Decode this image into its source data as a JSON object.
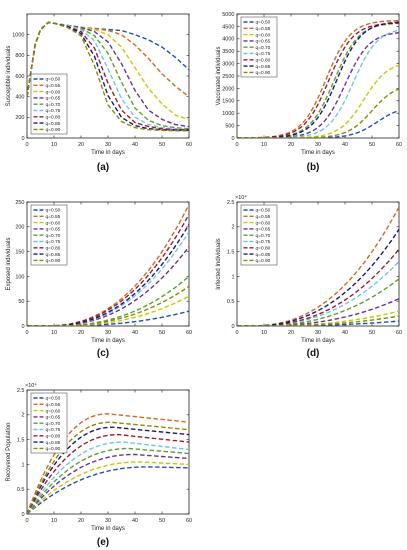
{
  "series_names": [
    "q=0.50",
    "q=0.55",
    "q=0.60",
    "q=0.65",
    "q=0.70",
    "q=0.75",
    "q=0.80",
    "q=0.85",
    "q=0.90"
  ],
  "series_colors": [
    "#1f4fbf",
    "#d2691e",
    "#c9c900",
    "#6a2fa0",
    "#5aa02c",
    "#6fc4e8",
    "#9e1b32",
    "#1a1a6e",
    "#8a8a00"
  ],
  "xlabel": "Time in days",
  "chart_data": [
    {
      "type": "line",
      "label": "(a)",
      "title": "",
      "xlabel": "Time in days",
      "ylabel": "Susceptible individuals",
      "xlim": [
        0,
        60
      ],
      "ylim": [
        0,
        1200
      ],
      "xticks": [
        0,
        10,
        20,
        30,
        40,
        50,
        60
      ],
      "yticks": [
        0,
        200,
        400,
        600,
        800,
        1000
      ],
      "exponent": "",
      "legend_position": "bottom-left",
      "kind": "susceptible",
      "x": [
        0,
        3,
        5,
        8,
        10,
        15,
        20,
        25,
        30,
        35,
        40,
        45,
        50,
        55,
        60
      ],
      "series": [
        {
          "name": "q=0.50",
          "values": [
            400,
            900,
            1050,
            1120,
            1110,
            1090,
            1070,
            1060,
            1050,
            1040,
            1000,
            950,
            880,
            780,
            660
          ]
        },
        {
          "name": "q=0.55",
          "values": [
            400,
            900,
            1050,
            1120,
            1110,
            1090,
            1070,
            1060,
            1040,
            1000,
            900,
            770,
            620,
            500,
            400
          ]
        },
        {
          "name": "q=0.60",
          "values": [
            400,
            900,
            1050,
            1120,
            1110,
            1090,
            1070,
            1050,
            1000,
            880,
            680,
            480,
            330,
            220,
            180
          ]
        },
        {
          "name": "q=0.65",
          "values": [
            400,
            900,
            1050,
            1120,
            1110,
            1090,
            1070,
            1030,
            930,
            720,
            460,
            270,
            180,
            130,
            110
          ]
        },
        {
          "name": "q=0.70",
          "values": [
            400,
            900,
            1050,
            1120,
            1110,
            1090,
            1060,
            990,
            820,
            540,
            290,
            170,
            120,
            100,
            90
          ]
        },
        {
          "name": "q=0.75",
          "values": [
            400,
            900,
            1050,
            1120,
            1110,
            1090,
            1050,
            940,
            670,
            380,
            200,
            130,
            100,
            90,
            80
          ]
        },
        {
          "name": "q=0.80",
          "values": [
            400,
            900,
            1050,
            1120,
            1110,
            1080,
            1030,
            870,
            530,
            270,
            150,
            110,
            90,
            80,
            80
          ]
        },
        {
          "name": "q=0.85",
          "values": [
            400,
            900,
            1050,
            1120,
            1110,
            1080,
            1010,
            790,
            410,
            200,
            120,
            90,
            80,
            75,
            75
          ]
        },
        {
          "name": "q=0.90",
          "values": [
            400,
            900,
            1050,
            1120,
            1110,
            1070,
            990,
            700,
            320,
            160,
            100,
            80,
            75,
            70,
            70
          ]
        }
      ]
    },
    {
      "type": "line",
      "label": "(b)",
      "title": "",
      "xlabel": "Time in days",
      "ylabel": "Vaccinated individuals",
      "xlim": [
        0,
        60
      ],
      "ylim": [
        0,
        5000
      ],
      "xticks": [
        0,
        10,
        20,
        30,
        40,
        50,
        60
      ],
      "yticks": [
        0,
        500,
        1000,
        1500,
        2000,
        2500,
        3000,
        3500,
        4000,
        4500,
        5000
      ],
      "exponent": "",
      "legend_position": "top-left",
      "kind": "vaccinated",
      "series": [
        {
          "name": "q=0.50",
          "final": 1300,
          "midpoint": 52
        },
        {
          "name": "q=0.55",
          "final": 4750,
          "midpoint": 33
        },
        {
          "name": "q=0.60",
          "final": 3100,
          "midpoint": 47
        },
        {
          "name": "q=0.65",
          "final": 4300,
          "midpoint": 40
        },
        {
          "name": "q=0.70",
          "final": 4650,
          "midpoint": 36
        },
        {
          "name": "q=0.75",
          "final": 4450,
          "midpoint": 43
        },
        {
          "name": "q=0.80",
          "final": 4650,
          "midpoint": 34
        },
        {
          "name": "q=0.85",
          "final": 4700,
          "midpoint": 37
        },
        {
          "name": "q=0.90",
          "final": 2200,
          "midpoint": 50
        }
      ]
    },
    {
      "type": "line",
      "label": "(c)",
      "title": "",
      "xlabel": "Time in days",
      "ylabel": "Exposed individuals",
      "xlim": [
        0,
        60
      ],
      "ylim": [
        0,
        250
      ],
      "xticks": [
        0,
        10,
        20,
        30,
        40,
        50,
        60
      ],
      "yticks": [
        0,
        50,
        100,
        150,
        200,
        250
      ],
      "exponent": "",
      "legend_position": "top-left",
      "kind": "growth",
      "series": [
        {
          "name": "q=0.50",
          "final": 30,
          "onset": 24
        },
        {
          "name": "q=0.55",
          "final": 245,
          "onset": 20
        },
        {
          "name": "q=0.60",
          "final": 60,
          "onset": 24
        },
        {
          "name": "q=0.65",
          "final": 160,
          "onset": 21
        },
        {
          "name": "q=0.70",
          "final": 100,
          "onset": 23
        },
        {
          "name": "q=0.75",
          "final": 190,
          "onset": 21
        },
        {
          "name": "q=0.80",
          "final": 225,
          "onset": 20
        },
        {
          "name": "q=0.85",
          "final": 205,
          "onset": 21
        },
        {
          "name": "q=0.90",
          "final": 80,
          "onset": 23
        }
      ]
    },
    {
      "type": "line",
      "label": "(d)",
      "title": "",
      "xlabel": "Time in days",
      "ylabel": "Infected Individuals",
      "xlim": [
        0,
        60
      ],
      "ylim": [
        0,
        2.5
      ],
      "xticks": [
        0,
        10,
        20,
        30,
        40,
        50,
        60
      ],
      "yticks": [
        0,
        0.5,
        1,
        1.5,
        2,
        2.5
      ],
      "exponent": "×10⁴",
      "legend_position": "top-left",
      "kind": "growth",
      "series": [
        {
          "name": "q=0.50",
          "final": 0.1,
          "onset": 22
        },
        {
          "name": "q=0.55",
          "final": 2.4,
          "onset": 18
        },
        {
          "name": "q=0.60",
          "final": 0.3,
          "onset": 21
        },
        {
          "name": "q=0.65",
          "final": 0.55,
          "onset": 20
        },
        {
          "name": "q=0.70",
          "final": 0.95,
          "onset": 20
        },
        {
          "name": "q=0.75",
          "final": 1.3,
          "onset": 19
        },
        {
          "name": "q=0.80",
          "final": 1.55,
          "onset": 19
        },
        {
          "name": "q=0.85",
          "final": 1.95,
          "onset": 18
        },
        {
          "name": "q=0.90",
          "final": 0.2,
          "onset": 22
        }
      ]
    },
    {
      "type": "line",
      "label": "(e)",
      "title": "",
      "xlabel": "Time in days",
      "ylabel": "Recovered Population",
      "xlim": [
        0,
        60
      ],
      "ylim": [
        0,
        2.5
      ],
      "xticks": [
        0,
        10,
        20,
        30,
        40,
        50,
        60
      ],
      "yticks": [
        0,
        0.5,
        1,
        1.5,
        2,
        2.5
      ],
      "exponent": "×10⁴",
      "legend_position": "top-left",
      "kind": "recovered",
      "series": [
        {
          "name": "q=0.50",
          "peak": 0.95,
          "tpeak": 45,
          "end": 0.93
        },
        {
          "name": "q=0.55",
          "peak": 2.02,
          "tpeak": 30,
          "end": 1.85
        },
        {
          "name": "q=0.60",
          "peak": 1.05,
          "tpeak": 42,
          "end": 1.0
        },
        {
          "name": "q=0.65",
          "peak": 1.2,
          "tpeak": 40,
          "end": 1.12
        },
        {
          "name": "q=0.70",
          "peak": 1.32,
          "tpeak": 38,
          "end": 1.22
        },
        {
          "name": "q=0.75",
          "peak": 1.45,
          "tpeak": 36,
          "end": 1.3
        },
        {
          "name": "q=0.80",
          "peak": 1.6,
          "tpeak": 34,
          "end": 1.45
        },
        {
          "name": "q=0.85",
          "peak": 1.75,
          "tpeak": 32,
          "end": 1.6
        },
        {
          "name": "q=0.90",
          "peak": 1.85,
          "tpeak": 31,
          "end": 1.7
        }
      ]
    }
  ]
}
